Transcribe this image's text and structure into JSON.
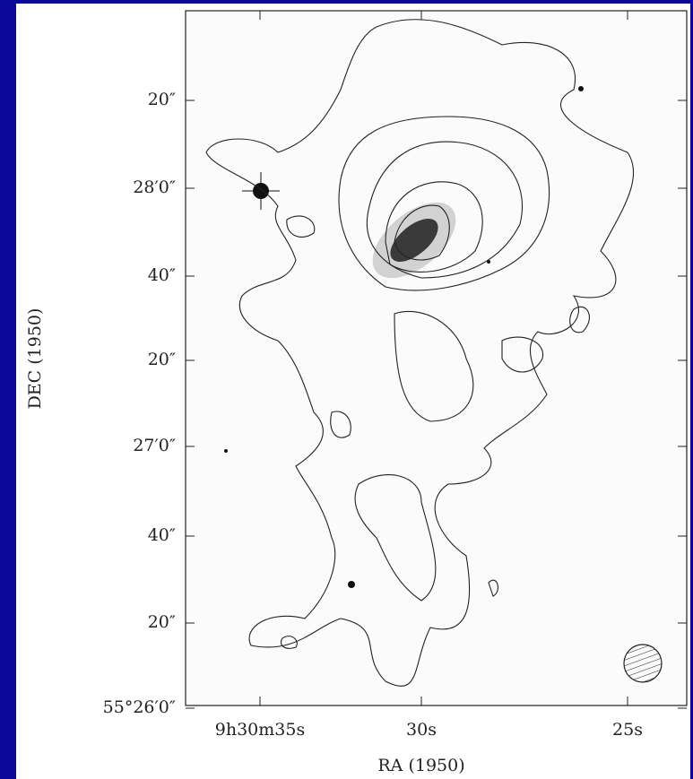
{
  "figure": {
    "x_axis": {
      "label": "RA (1950)",
      "ticks": [
        "9h30m35s",
        "30s",
        "25s"
      ]
    },
    "y_axis": {
      "label": "DEC (1950)",
      "ticks": [
        "20″",
        "28′0″",
        "40″",
        "20″",
        "27′0″",
        "40″",
        "20″",
        "55°26′0″"
      ]
    }
  }
}
